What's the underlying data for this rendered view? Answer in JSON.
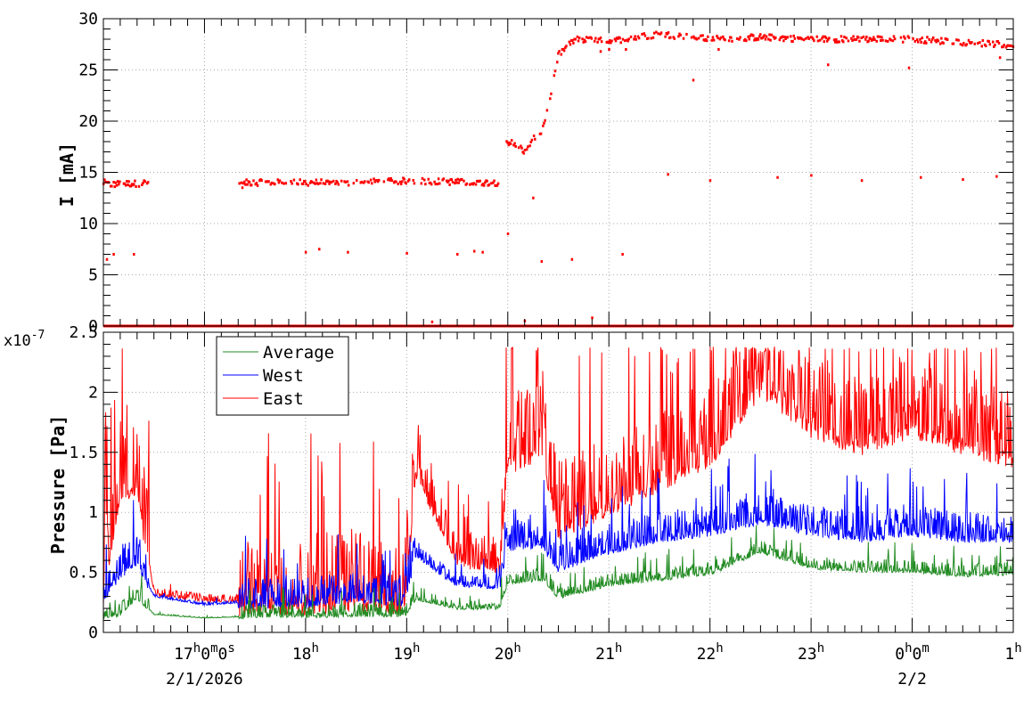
{
  "chart_data": [
    {
      "type": "scatter",
      "panel": "top",
      "ylabel": "I [mA]",
      "ylim": [
        0,
        30
      ],
      "yticks": [
        "0",
        "5",
        "10",
        "15",
        "20",
        "25",
        "30"
      ],
      "grid": true,
      "x_range": [
        "16:00",
        "01:00"
      ],
      "series": [
        {
          "color": "#ff0000",
          "main_trace": [
            [
              "16:00",
              14.0
            ],
            [
              "16:05",
              13.8
            ],
            [
              "16:10",
              13.9
            ],
            [
              "16:20",
              13.9
            ],
            [
              "16:25",
              14.0
            ],
            [
              "16:27",
              13.9
            ],
            [
              "17:20",
              13.6
            ],
            [
              "17:25",
              14.0
            ],
            [
              "17:40",
              14.0
            ],
            [
              "18:00",
              14.0
            ],
            [
              "18:20",
              14.0
            ],
            [
              "18:25",
              13.9
            ],
            [
              "18:40",
              14.1
            ],
            [
              "18:55",
              14.1
            ],
            [
              "19:00",
              14.2
            ],
            [
              "19:20",
              14.1
            ],
            [
              "19:40",
              14.0
            ],
            [
              "19:55",
              14.0
            ],
            [
              "19:58",
              18.0
            ],
            [
              "20:05",
              17.8
            ],
            [
              "20:10",
              17.0
            ],
            [
              "20:15",
              18.2
            ],
            [
              "20:20",
              19.0
            ],
            [
              "20:25",
              22.0
            ],
            [
              "20:30",
              26.5
            ],
            [
              "20:40",
              28.0
            ],
            [
              "21:00",
              27.8
            ],
            [
              "21:30",
              28.5
            ],
            [
              "22:00",
              28.0
            ],
            [
              "22:30",
              28.2
            ],
            [
              "23:00",
              28.0
            ],
            [
              "23:30",
              28.0
            ],
            [
              "00:00",
              28.0
            ],
            [
              "00:30",
              27.7
            ],
            [
              "01:00",
              27.4
            ]
          ],
          "outliers": [
            [
              "16:02",
              6.5
            ],
            [
              "16:06",
              7.0
            ],
            [
              "16:18",
              7.0
            ],
            [
              "18:00",
              7.2
            ],
            [
              "18:08",
              7.5
            ],
            [
              "18:25",
              7.2
            ],
            [
              "19:00",
              7.1
            ],
            [
              "19:30",
              7.0
            ],
            [
              "19:40",
              7.3
            ],
            [
              "19:45",
              7.2
            ],
            [
              "20:00",
              9.0
            ],
            [
              "20:15",
              12.5
            ],
            [
              "20:20",
              6.3
            ],
            [
              "20:38",
              6.5
            ],
            [
              "21:08",
              7.0
            ],
            [
              "20:10",
              0.5
            ],
            [
              "19:15",
              0.4
            ],
            [
              "20:50",
              0.8
            ],
            [
              "21:35",
              14.8
            ],
            [
              "22:00",
              14.2
            ],
            [
              "22:40",
              14.5
            ],
            [
              "23:00",
              14.7
            ],
            [
              "23:30",
              14.2
            ],
            [
              "00:05",
              14.5
            ],
            [
              "00:30",
              14.3
            ],
            [
              "00:50",
              14.6
            ],
            [
              "21:10",
              27.0
            ],
            [
              "21:50",
              24.0
            ],
            [
              "23:10",
              25.5
            ],
            [
              "23:58",
              25.2
            ],
            [
              "21:00",
              27.0
            ],
            [
              "20:55",
              26.8
            ],
            [
              "22:05",
              27.0
            ],
            [
              "00:52",
              26.2
            ]
          ]
        }
      ]
    },
    {
      "type": "line",
      "panel": "bottom",
      "ylabel": "Pressure [Pa]",
      "y_multiplier": "x10",
      "y_multiplier_exp": "-7",
      "ylim": [
        0,
        2.5
      ],
      "yticks": [
        "0",
        "0.5",
        "1",
        "1.5",
        "2",
        "2.5"
      ],
      "grid": true,
      "legend_position": "top-left",
      "x_range": [
        "16:00",
        "01:00"
      ],
      "series": [
        {
          "name": "Average",
          "color": "#228b22",
          "base": [
            [
              "16:00",
              0.13
            ],
            [
              "16:10",
              0.16
            ],
            [
              "16:20",
              0.3
            ],
            [
              "16:30",
              0.15
            ],
            [
              "17:00",
              0.12
            ],
            [
              "17:20",
              0.13
            ],
            [
              "17:30",
              0.14
            ],
            [
              "18:00",
              0.14
            ],
            [
              "18:30",
              0.15
            ],
            [
              "18:59",
              0.15
            ],
            [
              "19:05",
              0.28
            ],
            [
              "19:30",
              0.2
            ],
            [
              "19:55",
              0.2
            ],
            [
              "20:00",
              0.42
            ],
            [
              "20:20",
              0.45
            ],
            [
              "20:30",
              0.3
            ],
            [
              "21:00",
              0.4
            ],
            [
              "21:30",
              0.45
            ],
            [
              "22:00",
              0.5
            ],
            [
              "22:30",
              0.68
            ],
            [
              "23:00",
              0.55
            ],
            [
              "23:30",
              0.52
            ],
            [
              "00:00",
              0.52
            ],
            [
              "00:30",
              0.48
            ],
            [
              "01:00",
              0.5
            ]
          ],
          "spike": 0.15
        },
        {
          "name": "West",
          "color": "#0000ff",
          "base": [
            [
              "16:00",
              0.3
            ],
            [
              "16:10",
              0.5
            ],
            [
              "16:20",
              0.6
            ],
            [
              "16:30",
              0.3
            ],
            [
              "17:00",
              0.23
            ],
            [
              "17:20",
              0.25
            ],
            [
              "17:30",
              0.25
            ],
            [
              "18:00",
              0.25
            ],
            [
              "18:30",
              0.3
            ],
            [
              "18:59",
              0.25
            ],
            [
              "19:05",
              0.65
            ],
            [
              "19:30",
              0.4
            ],
            [
              "19:55",
              0.38
            ],
            [
              "20:00",
              0.72
            ],
            [
              "20:20",
              0.75
            ],
            [
              "20:30",
              0.55
            ],
            [
              "21:00",
              0.7
            ],
            [
              "21:30",
              0.8
            ],
            [
              "22:00",
              0.85
            ],
            [
              "22:30",
              0.95
            ],
            [
              "23:00",
              0.85
            ],
            [
              "23:30",
              0.8
            ],
            [
              "00:00",
              0.85
            ],
            [
              "00:30",
              0.8
            ],
            [
              "01:00",
              0.8
            ]
          ],
          "spike": 0.35
        },
        {
          "name": "East",
          "color": "#ff0000",
          "base": [
            [
              "16:00",
              0.35
            ],
            [
              "16:10",
              1.22
            ],
            [
              "16:20",
              1.25
            ],
            [
              "16:30",
              0.32
            ],
            [
              "17:00",
              0.27
            ],
            [
              "17:20",
              0.26
            ],
            [
              "17:30",
              0.28
            ],
            [
              "18:00",
              0.27
            ],
            [
              "18:30",
              0.3
            ],
            [
              "18:59",
              0.28
            ],
            [
              "19:05",
              1.35
            ],
            [
              "19:30",
              0.6
            ],
            [
              "19:55",
              0.55
            ],
            [
              "20:00",
              1.45
            ],
            [
              "20:20",
              1.55
            ],
            [
              "20:30",
              0.9
            ],
            [
              "21:00",
              1.1
            ],
            [
              "21:30",
              1.3
            ],
            [
              "22:00",
              1.5
            ],
            [
              "22:30",
              2.1
            ],
            [
              "23:00",
              1.75
            ],
            [
              "23:30",
              1.6
            ],
            [
              "00:00",
              1.75
            ],
            [
              "00:30",
              1.6
            ],
            [
              "01:00",
              1.5
            ]
          ],
          "spike": 0.9
        }
      ]
    }
  ],
  "x_axis": {
    "ticks": [
      {
        "time": "17:00",
        "base": "17",
        "sup1": "h",
        "mid": "0",
        "sup2": "m",
        "tail": "0",
        "sup3": "s"
      },
      {
        "time": "18:00",
        "base": "18",
        "sup1": "h",
        "mid": "",
        "sup2": "",
        "tail": "",
        "sup3": ""
      },
      {
        "time": "19:00",
        "base": "19",
        "sup1": "h",
        "mid": "",
        "sup2": "",
        "tail": "",
        "sup3": ""
      },
      {
        "time": "20:00",
        "base": "20",
        "sup1": "h",
        "mid": "",
        "sup2": "",
        "tail": "",
        "sup3": ""
      },
      {
        "time": "21:00",
        "base": "21",
        "sup1": "h",
        "mid": "",
        "sup2": "",
        "tail": "",
        "sup3": ""
      },
      {
        "time": "22:00",
        "base": "22",
        "sup1": "h",
        "mid": "",
        "sup2": "",
        "tail": "",
        "sup3": ""
      },
      {
        "time": "23:00",
        "base": "23",
        "sup1": "h",
        "mid": "",
        "sup2": "",
        "tail": "",
        "sup3": ""
      },
      {
        "time": "00:00",
        "base": "0",
        "sup1": "h",
        "mid": "0",
        "sup2": "m",
        "tail": "",
        "sup3": ""
      },
      {
        "time": "01:00",
        "base": "1",
        "sup1": "h",
        "mid": "",
        "sup2": "",
        "tail": "",
        "sup3": ""
      }
    ],
    "date_labels": [
      {
        "time": "17:00",
        "text": "2/1/2026"
      },
      {
        "time": "00:00",
        "text": "2/2"
      }
    ]
  }
}
